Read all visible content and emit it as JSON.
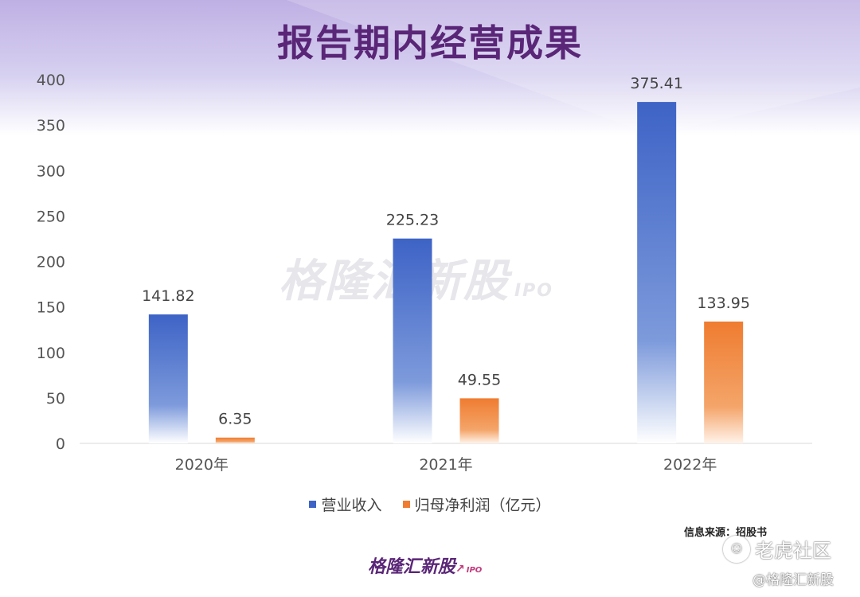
{
  "chart_data": {
    "type": "bar",
    "title": "报告期内经营成果",
    "categories": [
      "2020年",
      "2021年",
      "2022年"
    ],
    "series": [
      {
        "name": "营业收入",
        "values": [
          141.82,
          225.23,
          375.41
        ],
        "color": "#3d63c6"
      },
      {
        "name": "归母净利润（亿元）",
        "values": [
          6.35,
          49.55,
          133.95
        ],
        "color": "#ef7c30"
      }
    ],
    "value_labels": [
      [
        "141.82",
        "225.23",
        "375.41"
      ],
      [
        "6.35",
        "49.55",
        "133.95"
      ]
    ],
    "y_ticks": [
      "0",
      "50",
      "100",
      "150",
      "200",
      "250",
      "300",
      "350",
      "400"
    ],
    "ylim": [
      0,
      400
    ],
    "xlabel": "",
    "ylabel": "",
    "grid": false,
    "legend_position": "bottom"
  },
  "watermark": {
    "center_text": "格隆汇新股",
    "center_ipo": "IPO",
    "brand_text": "格隆汇新股",
    "brand_ipo": "IPO",
    "tiger_text": "老虎社区",
    "handle_text": "@格隆汇新股"
  },
  "source_text": "信息来源：招股书",
  "colors": {
    "title": "#5a2677",
    "revenue": "#3d63c6",
    "profit": "#ef7c30"
  }
}
